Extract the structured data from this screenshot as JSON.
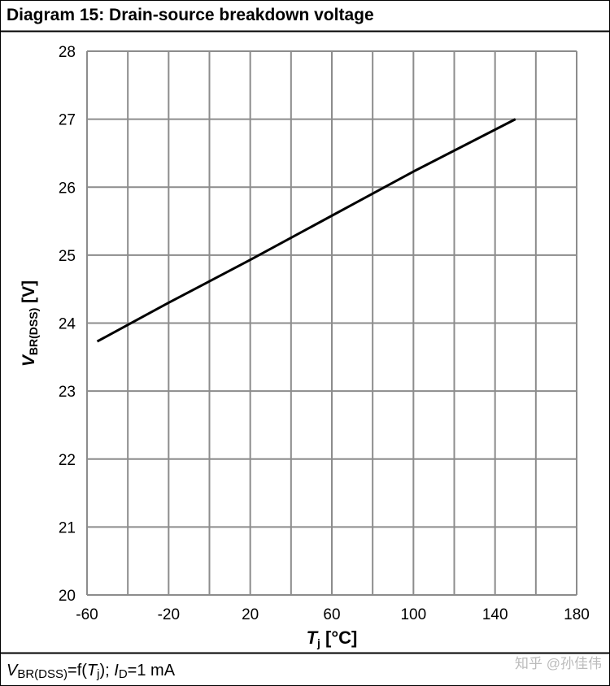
{
  "chart_data": {
    "type": "line",
    "title": "Diagram 15: Drain-source breakdown voltage",
    "ylabel": [
      "V",
      "BR(DSS)",
      " [V]"
    ],
    "xlabel": [
      "T",
      "j",
      " [°C]"
    ],
    "footnote": [
      "V",
      "BR(DSS)",
      "=f(",
      "T",
      "j",
      "); ",
      "I",
      "D",
      "=1 mA"
    ],
    "watermark": "知乎 @孙佳伟",
    "x": [
      -55,
      -20,
      20,
      60,
      100,
      150
    ],
    "series": [
      {
        "color": "#000000",
        "values": [
          23.73,
          24.3,
          24.93,
          25.58,
          26.23,
          27.0
        ]
      }
    ],
    "xlim": [
      -60,
      180
    ],
    "xticks": [
      -60,
      -20,
      20,
      60,
      100,
      140,
      180
    ],
    "xgrid": [
      -60,
      -40,
      -20,
      0,
      20,
      40,
      60,
      80,
      100,
      120,
      140,
      160,
      180
    ],
    "ylim": [
      20,
      28
    ],
    "yticks": [
      20,
      21,
      22,
      23,
      24,
      25,
      26,
      27,
      28
    ],
    "grid": true
  }
}
